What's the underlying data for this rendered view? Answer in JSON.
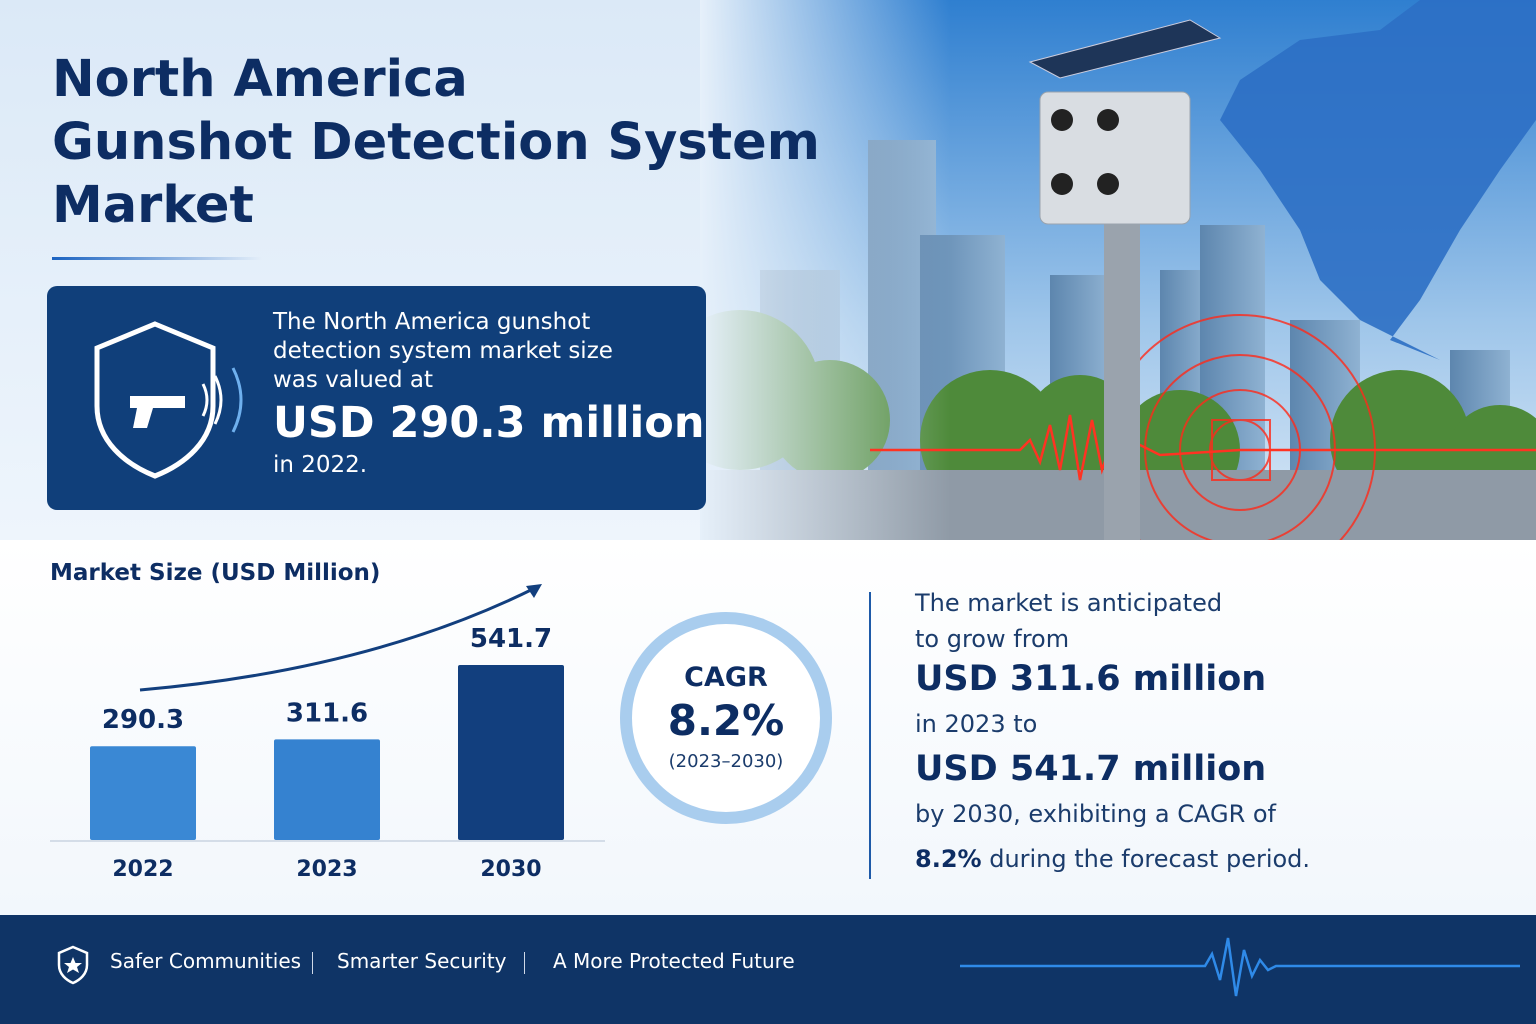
{
  "header": {
    "title_lines": [
      "North America",
      "Gunshot Detection System",
      "Market"
    ]
  },
  "info_box": {
    "lines": [
      "The North America gunshot",
      "detection system market size",
      "was valued at"
    ],
    "highlight": "USD 290.3 million",
    "tail": "in 2022."
  },
  "chart_data": {
    "type": "bar",
    "title": "Market Size (USD Million)",
    "categories": [
      "2022",
      "2023",
      "2030"
    ],
    "values": [
      290.3,
      311.6,
      541.7
    ],
    "colors": [
      "#3a88d4",
      "#3582d0",
      "#123f7e"
    ]
  },
  "cagr": {
    "label": "CAGR",
    "value": "8.2%",
    "period": "(2023–2030)"
  },
  "summary": {
    "line1": "The market is anticipated",
    "line2": "to grow from",
    "amount1": "USD 311.6 million",
    "line3": "in 2023 to",
    "amount2": "USD 541.7 million",
    "line4": "by 2030, exhibiting a CAGR of",
    "rate": "8.2%",
    "line5": "during the forecast period."
  },
  "footer": {
    "items": [
      "Safer Communities",
      "Smarter Security",
      "A More Protected Future"
    ]
  }
}
